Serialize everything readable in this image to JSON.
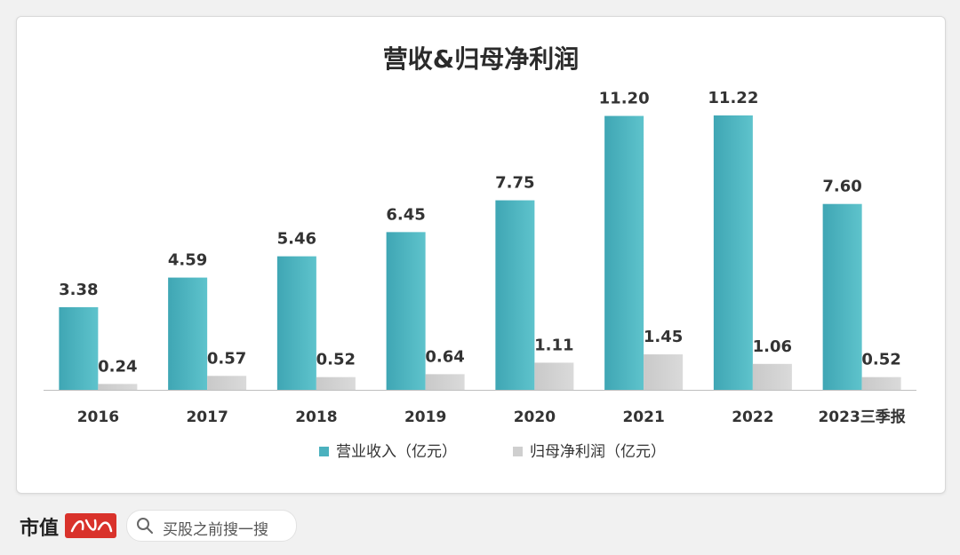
{
  "chart_data": {
    "type": "bar",
    "title": "营收&归母净利润",
    "categories": [
      "2016",
      "2017",
      "2018",
      "2019",
      "2020",
      "2021",
      "2022",
      "2023三季报"
    ],
    "series": [
      {
        "name": "营业收入（亿元）",
        "values": [
          3.38,
          4.59,
          5.46,
          6.45,
          7.75,
          11.2,
          11.22,
          7.6
        ],
        "labels": [
          "3.38",
          "4.59",
          "5.46",
          "6.45",
          "7.75",
          "11.20",
          "11.22",
          "7.60"
        ],
        "color": "#4bb1be"
      },
      {
        "name": "归母净利润（亿元）",
        "values": [
          0.24,
          0.57,
          0.52,
          0.64,
          1.11,
          1.45,
          1.06,
          0.52
        ],
        "labels": [
          "0.24",
          "0.57",
          "0.52",
          "0.64",
          "1.11",
          "1.45",
          "1.06",
          "0.52"
        ],
        "color": "#cfcfcf"
      }
    ],
    "ylim": [
      0,
      11.22
    ],
    "grid": false,
    "legend": "bottom"
  },
  "footer": {
    "brand": "市值",
    "search_placeholder": "买股之前搜一搜"
  },
  "colors": {
    "title": "#2b2b2b",
    "axis": "#bfbfbf",
    "brand_red": "#d9322b"
  }
}
